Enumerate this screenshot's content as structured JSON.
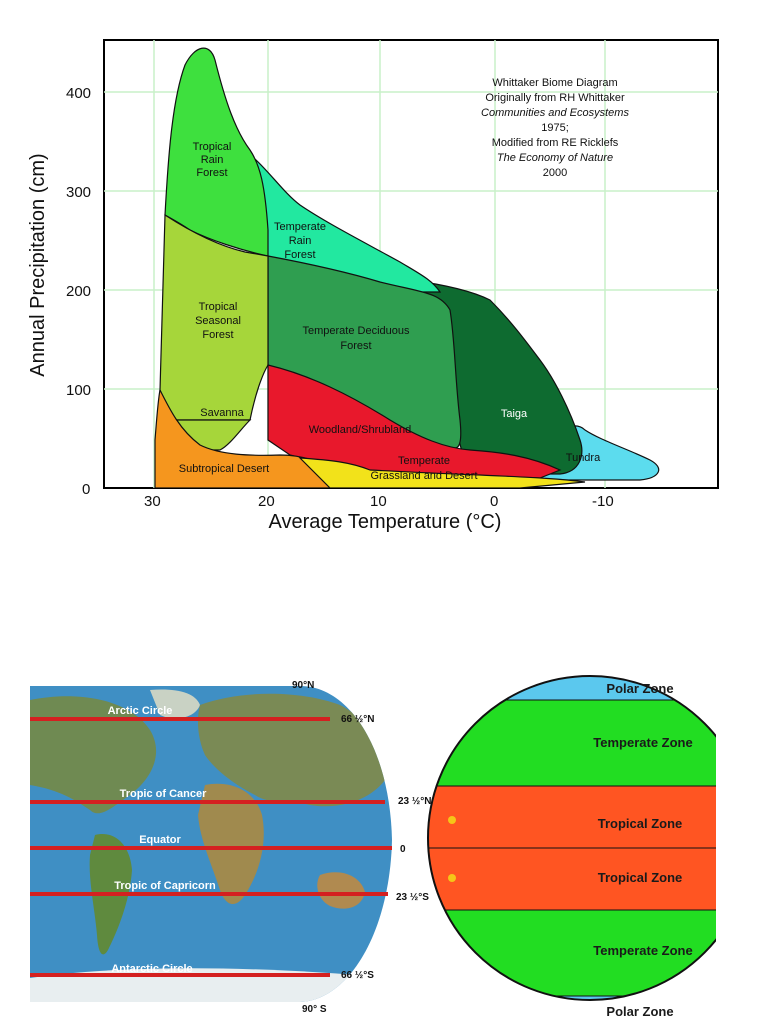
{
  "whittaker": {
    "title_lines": [
      "Whittaker Biome Diagram",
      "Originally from RH Whittaker",
      "Communities and Ecosystems",
      "1975;",
      "Modified from RE Ricklefs",
      "The Economy of Nature",
      "2000"
    ],
    "xlabel": "Average Temperature (°C)",
    "ylabel": "Annual Precipitation (cm)",
    "x_ticks": [
      "30",
      "20",
      "10",
      "0",
      "-10"
    ],
    "y_ticks": [
      "0",
      "100",
      "200",
      "300",
      "400"
    ],
    "biomes": [
      {
        "name": "tropical-rain-forest",
        "lines": [
          "Tropical",
          "Rain",
          "Forest"
        ],
        "color": "#3ee03e"
      },
      {
        "name": "tropical-seasonal-forest",
        "lines": [
          "Tropical",
          "Seasonal",
          "Forest"
        ],
        "color": "#a6d63a"
      },
      {
        "name": "savanna",
        "lines": [
          "Savanna"
        ],
        "color": "#a6d63a"
      },
      {
        "name": "subtropical-desert",
        "lines": [
          "Subtropical Desert"
        ],
        "color": "#f5961e"
      },
      {
        "name": "temperate-rain-forest",
        "lines": [
          "Temperate",
          "Rain",
          "Forest"
        ],
        "color": "#22e8a0"
      },
      {
        "name": "temperate-deciduous-forest",
        "lines": [
          "Temperate Deciduous",
          "Forest"
        ],
        "color": "#2f9e50"
      },
      {
        "name": "woodland-shrubland",
        "lines": [
          "Woodland/Shrubland"
        ],
        "color": "#e8182c"
      },
      {
        "name": "temperate-grassland-desert",
        "lines": [
          "Temperate",
          "Grassland and Desert"
        ],
        "color": "#f2e21a"
      },
      {
        "name": "taiga",
        "lines": [
          "Taiga"
        ],
        "color": "#0e6b30"
      },
      {
        "name": "tundra",
        "lines": [
          "Tundra"
        ],
        "color": "#5cdcee"
      }
    ]
  },
  "world_map": {
    "lines": [
      {
        "name": "arctic-circle",
        "label": "Arctic Circle",
        "lat": "66 ½°N"
      },
      {
        "name": "tropic-of-cancer",
        "label": "Tropic of Cancer",
        "lat": "23 ½°N"
      },
      {
        "name": "equator",
        "label": "Equator",
        "lat": "0"
      },
      {
        "name": "tropic-of-capricorn",
        "label": "Tropic of Capricorn",
        "lat": "23 ½°S"
      },
      {
        "name": "antarctic-circle",
        "label": "Antarctic Circle",
        "lat": "66 ½°S"
      }
    ],
    "north_pole": "90°N",
    "south_pole": "90° S",
    "line_color": "#d42020"
  },
  "zones": {
    "polar_top": "Polar Zone",
    "temperate_top": "Temperate Zone",
    "tropical_top": "Tropical Zone",
    "tropical_bottom": "Tropical Zone",
    "temperate_bottom": "Temperate Zone",
    "polar_bottom": "Polar Zone",
    "colors": {
      "polar": "#5bc8ee",
      "temperate": "#22dd22",
      "tropical": "#ff5522"
    }
  }
}
